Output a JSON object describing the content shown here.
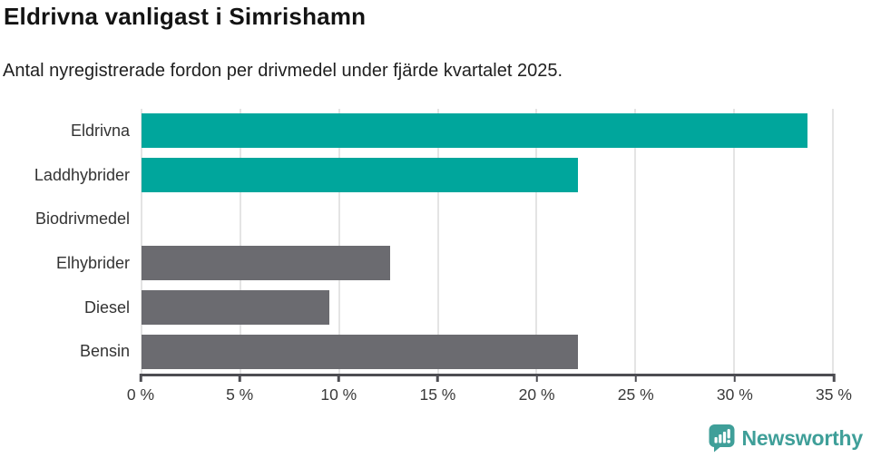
{
  "header": {
    "title": "Eldrivna vanligast i Simrishamn",
    "subtitle": "Antal nyregistrerade fordon per drivmedel under fjärde kvartalet 2025."
  },
  "chart_data": {
    "type": "bar",
    "orientation": "horizontal",
    "title": "Eldrivna vanligast i Simrishamn",
    "subtitle": "Antal nyregistrerade fordon per drivmedel under fjärde kvartalet 2025.",
    "categories": [
      "Eldrivna",
      "Laddhybrider",
      "Biodrivmedel",
      "Elhybrider",
      "Diesel",
      "Bensin"
    ],
    "values": [
      33.7,
      22.1,
      0,
      12.6,
      9.5,
      22.1
    ],
    "unit": "%",
    "bar_colors": [
      "#00a69c",
      "#00a69c",
      "#6b6b70",
      "#6b6b70",
      "#6b6b70",
      "#6b6b70"
    ],
    "highlight_color": "#00a69c",
    "default_color": "#6b6b70",
    "xlim": [
      0,
      35
    ],
    "x_ticks": [
      0,
      5,
      10,
      15,
      20,
      25,
      30,
      35
    ],
    "x_tick_labels": [
      "0 %",
      "5 %",
      "10 %",
      "15 %",
      "20 %",
      "25 %",
      "30 %",
      "35 %"
    ],
    "grid": "vertical-gridlines-on",
    "gridline_color": "#e4e4e4",
    "axis_color": "#4d4d52",
    "legend": "none"
  },
  "footer": {
    "brand": "Newsworthy",
    "brand_color": "#3f9f99",
    "logo_icon": "newsworthy-speech-bubble-bar-chart-icon"
  }
}
